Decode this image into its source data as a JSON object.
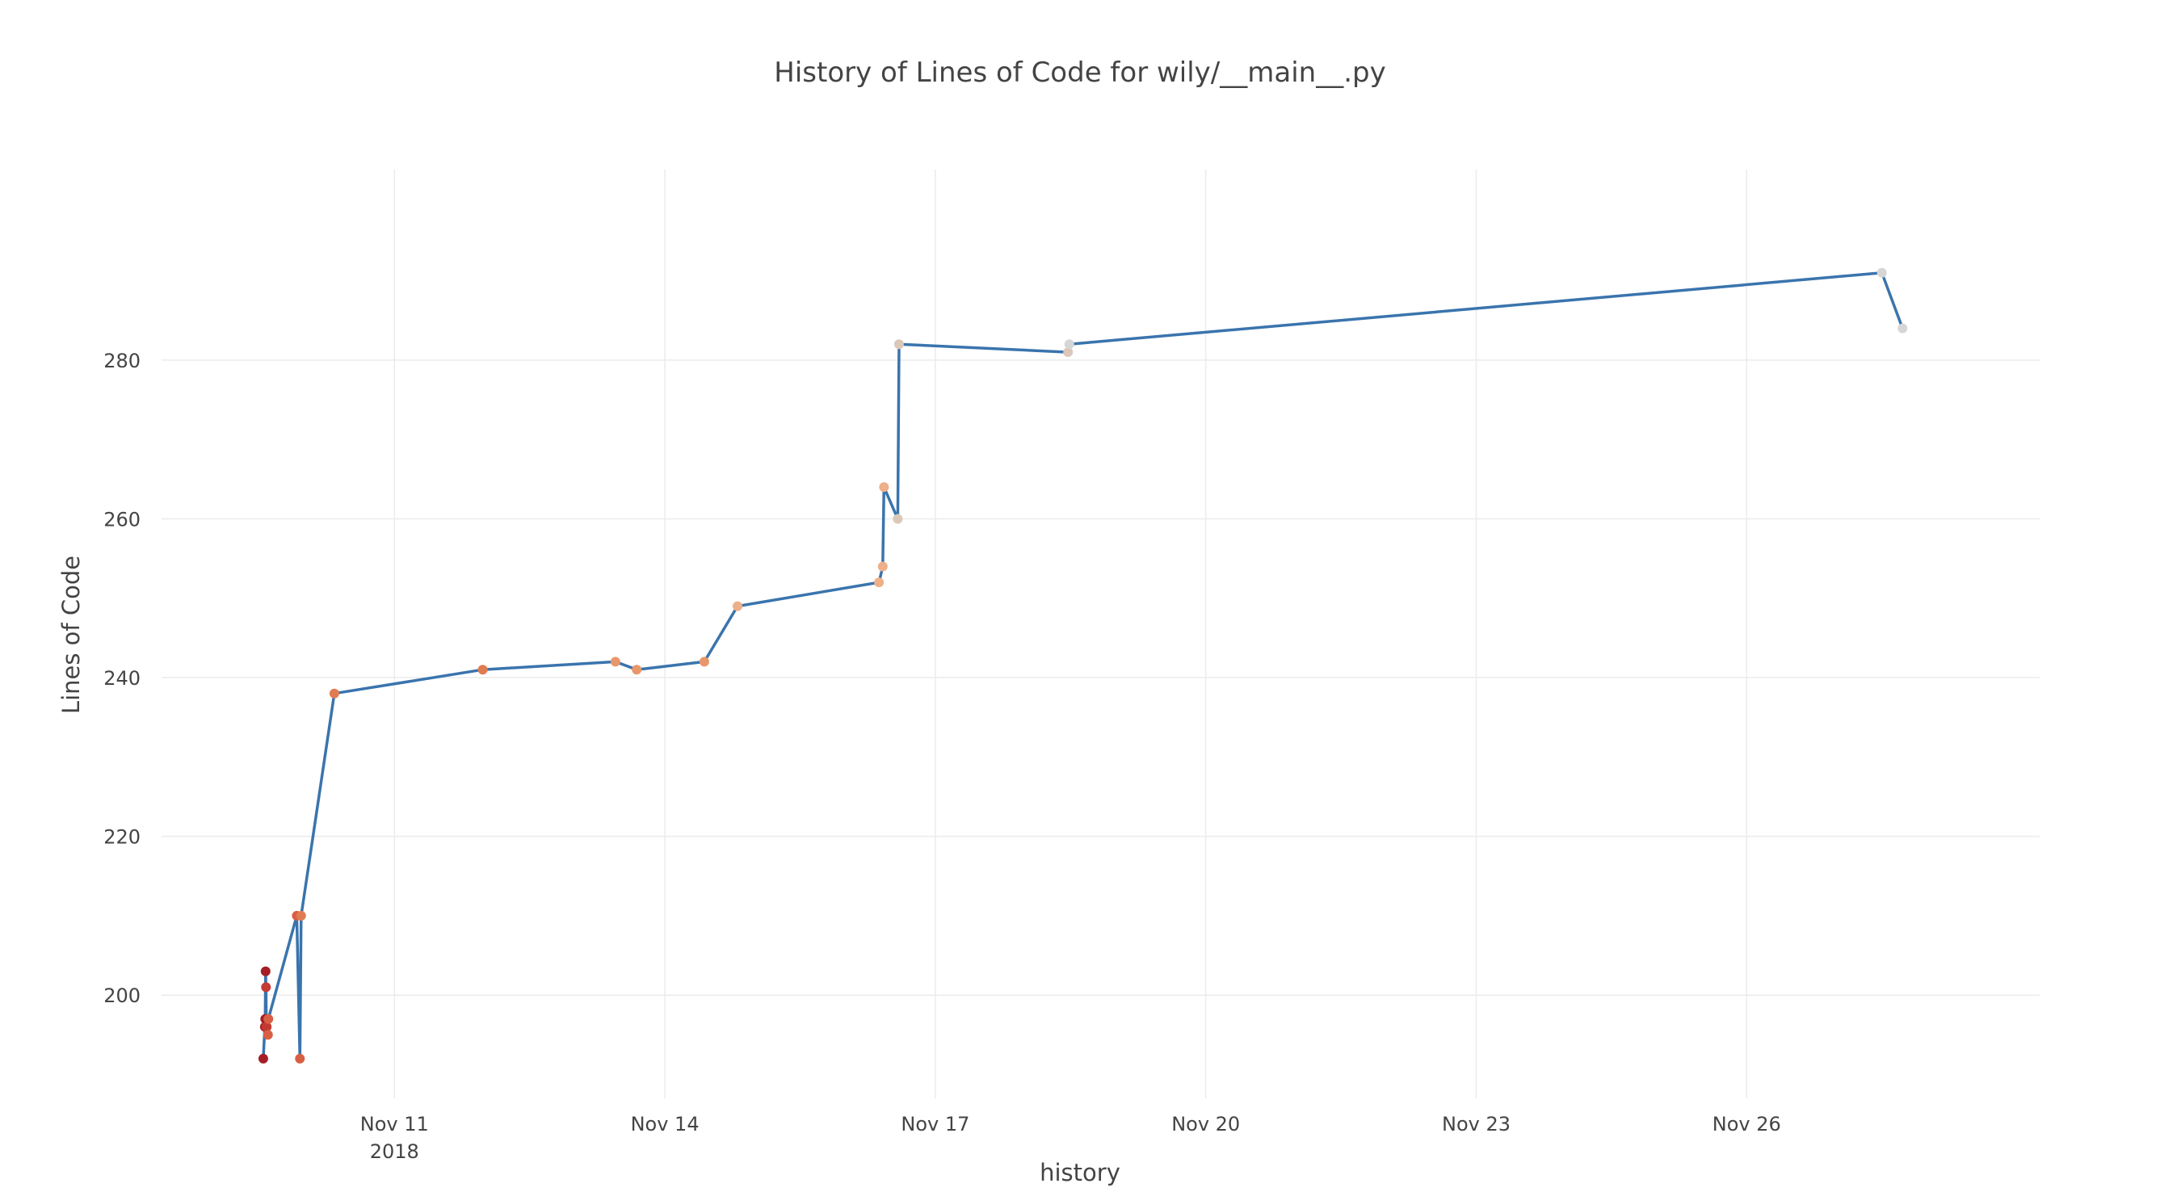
{
  "chart_data": {
    "type": "line",
    "title": "History of Lines of Code for wily/__main__.py",
    "xlabel": "history",
    "ylabel": "Lines of Code",
    "x_range": [
      "2018-11-08T10:00",
      "2018-11-29T06:00"
    ],
    "ylim": [
      187,
      304
    ],
    "x_ticks": [
      {
        "x": "2018-11-11",
        "label": "Nov 11",
        "sublabel": "2018"
      },
      {
        "x": "2018-11-14",
        "label": "Nov 14"
      },
      {
        "x": "2018-11-17",
        "label": "Nov 17"
      },
      {
        "x": "2018-11-20",
        "label": "Nov 20"
      },
      {
        "x": "2018-11-23",
        "label": "Nov 23"
      },
      {
        "x": "2018-11-26",
        "label": "Nov 26"
      }
    ],
    "y_ticks": [
      200,
      220,
      240,
      260,
      280
    ],
    "grid": true,
    "line_color": "#3a74ad",
    "marker_colors": [
      "#a51e25",
      "#c43a33",
      "#d85f44",
      "#e07c52",
      "#e8976a",
      "#edb089",
      "#dcc8b8",
      "#d6d6d6"
    ],
    "series": [
      {
        "points": [
          {
            "x": "2018-11-09T13:05",
            "y": 192
          },
          {
            "x": "2018-11-09T13:30",
            "y": 196
          },
          {
            "x": "2018-11-09T13:36",
            "y": 197
          },
          {
            "x": "2018-11-09T13:42",
            "y": 203
          },
          {
            "x": "2018-11-09T13:48",
            "y": 201
          },
          {
            "x": "2018-11-09T13:54",
            "y": 196
          },
          {
            "x": "2018-11-09T14:00",
            "y": 196
          },
          {
            "x": "2018-11-09T14:20",
            "y": 195
          },
          {
            "x": "2018-11-09T14:26",
            "y": 197
          },
          {
            "x": "2018-11-09T22:00",
            "y": 210
          },
          {
            "x": "2018-11-09T22:50",
            "y": 192
          },
          {
            "x": "2018-11-09T23:10",
            "y": 210
          },
          {
            "x": "2018-11-10T08:00",
            "y": 238
          },
          {
            "x": "2018-11-11T23:30",
            "y": 241
          },
          {
            "x": "2018-11-13T10:50",
            "y": 242
          },
          {
            "x": "2018-11-13T16:30",
            "y": 241
          },
          {
            "x": "2018-11-14T10:30",
            "y": 242
          },
          {
            "x": "2018-11-14T19:20",
            "y": 249
          },
          {
            "x": "2018-11-16T09:00",
            "y": 252
          },
          {
            "x": "2018-11-16T10:00",
            "y": 254
          },
          {
            "x": "2018-11-16T10:20",
            "y": 264
          },
          {
            "x": "2018-11-16T14:00",
            "y": 260
          },
          {
            "x": "2018-11-16T14:20",
            "y": 282
          },
          {
            "x": "2018-11-18T11:20",
            "y": 281
          },
          {
            "x": "2018-11-18T11:40",
            "y": 282
          },
          {
            "x": "2018-11-27T12:00",
            "y": 291
          },
          {
            "x": "2018-11-27T17:30",
            "y": 284
          }
        ]
      }
    ]
  }
}
